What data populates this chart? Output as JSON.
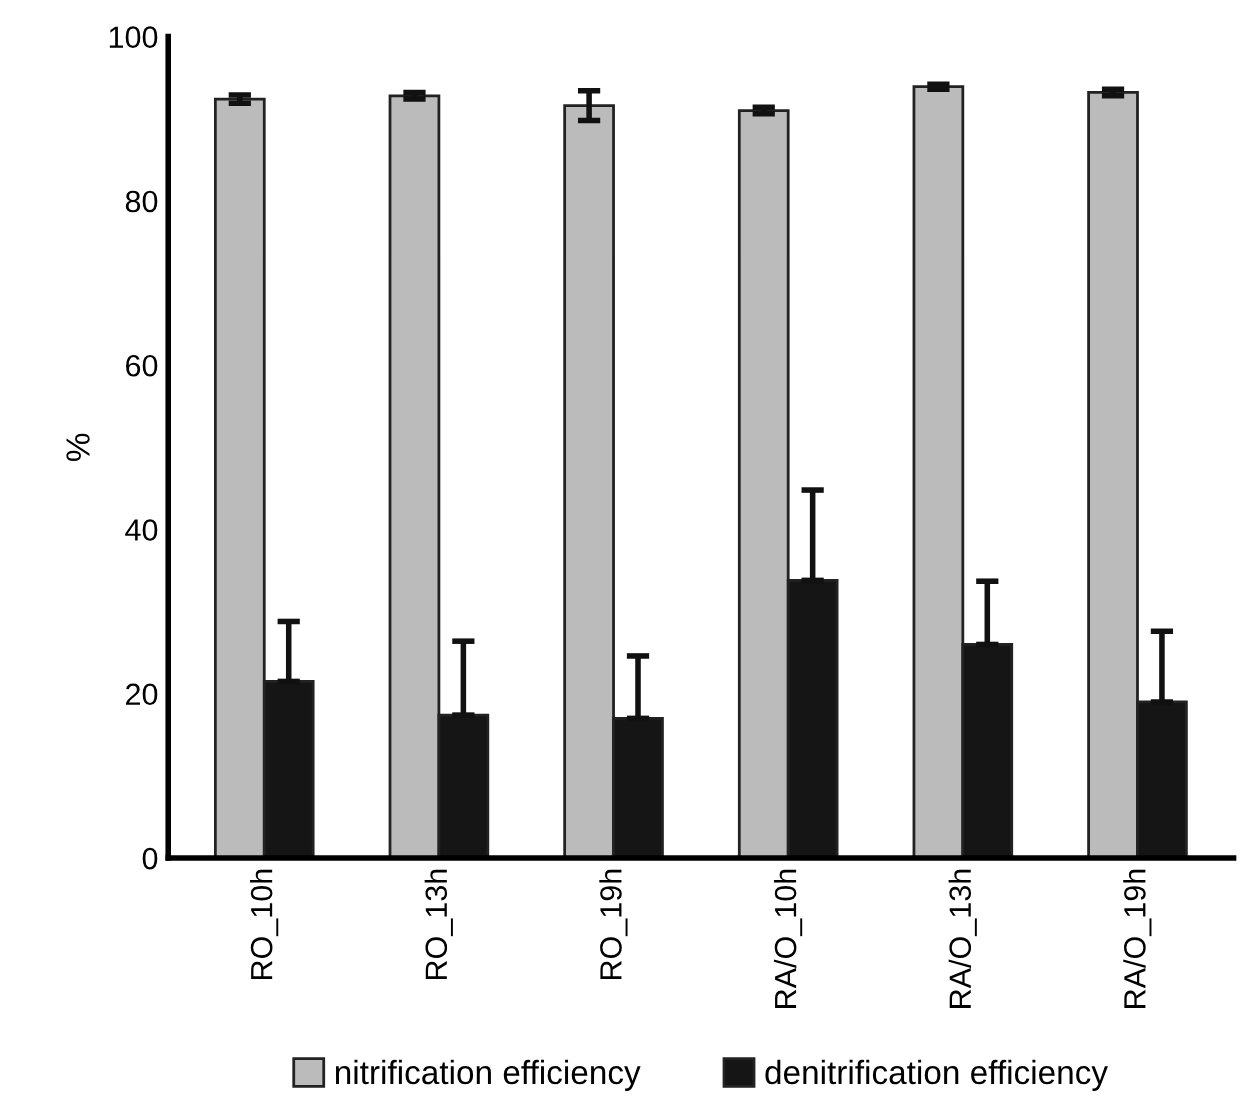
{
  "chart_data": {
    "type": "bar",
    "ylabel": "%",
    "categories": [
      "RO_10h",
      "RO_13h",
      "RO_19h",
      "RA/O_10h",
      "RA/O_13h",
      "RA/O_19h"
    ],
    "series": [
      {
        "name": "nitrification efficiency",
        "color": "#bbbbbb",
        "values": [
          92.4,
          92.8,
          91.6,
          91.0,
          93.9,
          93.2
        ],
        "errors": [
          0.5,
          0.4,
          1.8,
          0.4,
          0.3,
          0.4
        ]
      },
      {
        "name": "denitrification efficiency",
        "color": "#151515",
        "values": [
          21.5,
          17.4,
          17.0,
          33.8,
          26.0,
          19.0
        ],
        "errors": [
          [
            21.5,
            28.8
          ],
          [
            17.4,
            26.4
          ],
          [
            17.0,
            24.6
          ],
          [
            33.8,
            44.8
          ],
          [
            26.0,
            33.7
          ],
          [
            19.0,
            27.6
          ]
        ]
      }
    ],
    "ylim": [
      0,
      100
    ],
    "yticks": [
      0,
      20,
      40,
      60,
      80,
      100
    ],
    "grid": false,
    "legend": "bottom"
  }
}
